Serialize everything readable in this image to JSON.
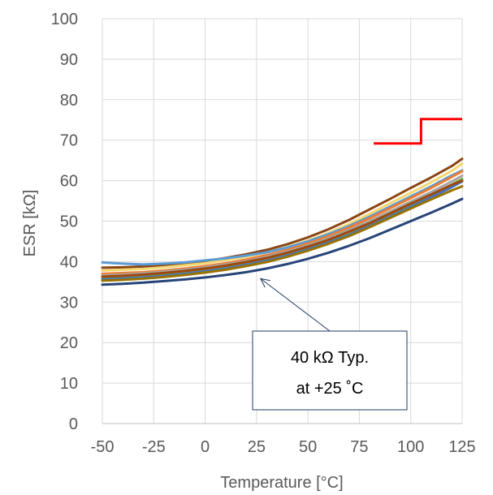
{
  "chart_data": {
    "type": "line",
    "xlabel": "Temperature [°C]",
    "ylabel": "ESR [kΩ]",
    "xlim": [
      -50,
      125
    ],
    "ylim": [
      0,
      100
    ],
    "x_ticks": [
      "-50",
      "-25",
      "0",
      "25",
      "50",
      "75",
      "100",
      "125"
    ],
    "y_ticks": [
      "0",
      "10",
      "20",
      "30",
      "40",
      "50",
      "60",
      "70",
      "80",
      "90",
      "100"
    ],
    "grid": true,
    "x": [
      -50,
      -40,
      -30,
      -20,
      -10,
      0,
      10,
      20,
      30,
      40,
      50,
      60,
      70,
      80,
      90,
      100,
      110,
      120,
      125
    ],
    "series": [
      {
        "color": "#8B4513",
        "values": [
          38.5,
          38.6,
          38.8,
          39.1,
          39.6,
          40.1,
          40.9,
          41.8,
          42.9,
          44.3,
          46.0,
          48.0,
          50.3,
          52.9,
          55.5,
          58.2,
          60.8,
          63.6,
          65.4
        ]
      },
      {
        "color": "#F5D76E",
        "values": [
          37.8,
          38.0,
          38.2,
          38.6,
          39.1,
          39.6,
          40.4,
          41.2,
          42.3,
          43.6,
          45.2,
          47.1,
          49.3,
          51.8,
          54.4,
          57.0,
          59.6,
          62.4,
          64.2
        ]
      },
      {
        "color": "#5B9BD5",
        "values": [
          39.8,
          39.5,
          39.3,
          39.5,
          39.8,
          40.3,
          40.8,
          41.5,
          42.3,
          43.5,
          45.0,
          46.8,
          48.8,
          51.1,
          53.6,
          56.1,
          58.6,
          61.3,
          62.5
        ]
      },
      {
        "color": "#ED7D31",
        "values": [
          37.0,
          37.2,
          37.4,
          37.8,
          38.3,
          38.9,
          39.6,
          40.5,
          41.6,
          42.9,
          44.5,
          46.3,
          48.4,
          50.7,
          53.2,
          55.7,
          58.2,
          60.9,
          62.3
        ]
      },
      {
        "color": "#A5A5A5",
        "values": [
          36.6,
          36.8,
          37.1,
          37.5,
          38.0,
          38.6,
          39.3,
          40.1,
          41.2,
          42.5,
          44.0,
          45.8,
          47.8,
          50.0,
          52.4,
          54.8,
          57.2,
          59.8,
          61.2
        ]
      },
      {
        "color": "#70AD47",
        "values": [
          36.0,
          36.2,
          36.5,
          36.9,
          37.4,
          38.0,
          38.7,
          39.6,
          40.6,
          41.9,
          43.4,
          45.1,
          47.1,
          49.3,
          51.7,
          54.1,
          56.5,
          59.0,
          60.4
        ]
      },
      {
        "color": "#4472C4",
        "values": [
          35.6,
          35.8,
          36.1,
          36.5,
          37.0,
          37.6,
          38.3,
          39.2,
          40.2,
          41.5,
          43.0,
          44.7,
          46.6,
          48.8,
          51.1,
          53.5,
          55.9,
          58.4,
          59.8
        ]
      },
      {
        "color": "#9E480E",
        "values": [
          36.3,
          36.5,
          36.8,
          37.2,
          37.7,
          38.3,
          39.0,
          39.9,
          40.9,
          42.2,
          43.7,
          45.4,
          47.4,
          49.5,
          51.9,
          54.3,
          56.6,
          59.0,
          60.0
        ]
      },
      {
        "color": "#997300",
        "values": [
          35.3,
          35.5,
          35.8,
          36.2,
          36.7,
          37.3,
          38.0,
          38.9,
          39.9,
          41.2,
          42.7,
          44.4,
          46.3,
          48.5,
          50.8,
          53.1,
          55.4,
          57.6,
          58.6
        ]
      },
      {
        "color": "#264478",
        "values": [
          34.3,
          34.5,
          34.8,
          35.2,
          35.6,
          36.1,
          36.7,
          37.4,
          38.3,
          39.4,
          40.7,
          42.2,
          43.9,
          45.8,
          47.9,
          50.0,
          52.1,
          54.3,
          55.5
        ]
      }
    ],
    "limit_line": {
      "color": "#FF0000",
      "points": [
        [
          82,
          69.2
        ],
        [
          105,
          69.2
        ],
        [
          105,
          75.2
        ],
        [
          125,
          75.2
        ]
      ]
    },
    "annotation": {
      "lines": [
        "40 kΩ Typ.",
        "at +25 ˚C"
      ],
      "arrow_target": [
        25,
        37
      ]
    }
  }
}
